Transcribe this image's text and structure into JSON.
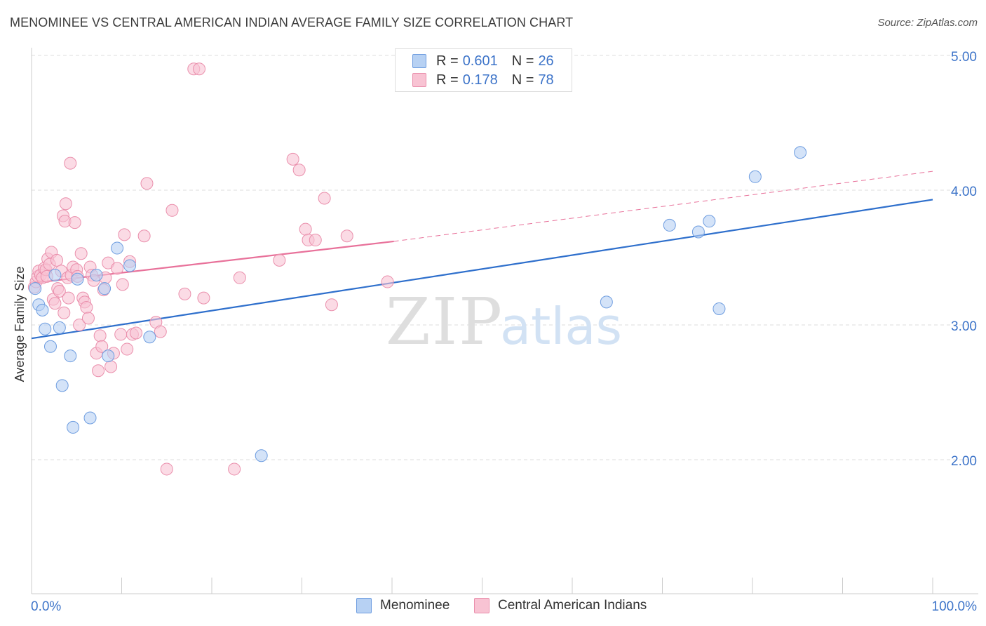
{
  "title": "MENOMINEE VS CENTRAL AMERICAN INDIAN AVERAGE FAMILY SIZE CORRELATION CHART",
  "source": "Source: ZipAtlas.com",
  "watermark": {
    "zip": "ZIP",
    "atlas": "atlas"
  },
  "legend": {
    "series": [
      {
        "r_label": "R =",
        "r_value": "0.601",
        "n_label": "N =",
        "n_value": "26"
      },
      {
        "r_label": "R =",
        "r_value": "0.178",
        "n_label": "N =",
        "n_value": "78"
      }
    ]
  },
  "bottom_legend": [
    "Menominee",
    "Central American Indians"
  ],
  "colors": {
    "blue_fill": "#b7d1f3",
    "blue_stroke": "#6e9de0",
    "blue_line": "#2e6fcc",
    "pink_fill": "#f8c3d3",
    "pink_stroke": "#ea8fac",
    "pink_line": "#e8719a",
    "axis_label": "#3d74c9"
  },
  "chart_data": {
    "type": "scatter",
    "title": "MENOMINEE VS CENTRAL AMERICAN INDIAN AVERAGE FAMILY SIZE CORRELATION CHART",
    "xlabel": "",
    "ylabel": "Average Family Size",
    "xlim": [
      0,
      100
    ],
    "ylim": [
      1.2,
      5.1
    ],
    "x_tick_labels": [
      "0.0%",
      "100.0%"
    ],
    "y_ticks": [
      2.0,
      3.0,
      4.0,
      5.0
    ],
    "y_tick_labels": [
      "2.00",
      "3.00",
      "4.00",
      "5.00"
    ],
    "grid": true,
    "series": [
      {
        "name": "Menominee",
        "r": 0.601,
        "n": 26,
        "trendline": {
          "x": [
            0,
            100
          ],
          "y": [
            2.9,
            3.93
          ]
        },
        "points": [
          {
            "x": 0.4,
            "y": 3.27
          },
          {
            "x": 0.8,
            "y": 3.15
          },
          {
            "x": 1.2,
            "y": 3.11
          },
          {
            "x": 1.5,
            "y": 2.97
          },
          {
            "x": 2.1,
            "y": 2.84
          },
          {
            "x": 2.6,
            "y": 3.37
          },
          {
            "x": 3.1,
            "y": 2.98
          },
          {
            "x": 3.4,
            "y": 2.55
          },
          {
            "x": 4.3,
            "y": 2.77
          },
          {
            "x": 4.6,
            "y": 2.24
          },
          {
            "x": 5.1,
            "y": 3.34
          },
          {
            "x": 6.5,
            "y": 2.31
          },
          {
            "x": 7.2,
            "y": 3.37
          },
          {
            "x": 8.1,
            "y": 3.27
          },
          {
            "x": 8.5,
            "y": 2.77
          },
          {
            "x": 9.5,
            "y": 3.57
          },
          {
            "x": 10.9,
            "y": 3.44
          },
          {
            "x": 13.1,
            "y": 2.91
          },
          {
            "x": 25.5,
            "y": 2.03
          },
          {
            "x": 63.8,
            "y": 3.17
          },
          {
            "x": 70.8,
            "y": 3.74
          },
          {
            "x": 74.0,
            "y": 3.69
          },
          {
            "x": 75.2,
            "y": 3.77
          },
          {
            "x": 76.3,
            "y": 3.12
          },
          {
            "x": 80.3,
            "y": 4.1
          },
          {
            "x": 85.3,
            "y": 4.28
          }
        ]
      },
      {
        "name": "Central American Indians",
        "r": 0.178,
        "n": 78,
        "trendline": {
          "x": [
            0,
            40.2
          ],
          "y": [
            3.31,
            3.62
          ]
        },
        "trendline_dashed": {
          "x": [
            40.2,
            100
          ],
          "y": [
            3.62,
            4.14
          ]
        },
        "points": [
          {
            "x": 0.3,
            "y": 3.28
          },
          {
            "x": 0.5,
            "y": 3.32
          },
          {
            "x": 0.7,
            "y": 3.36
          },
          {
            "x": 0.8,
            "y": 3.4
          },
          {
            "x": 1.0,
            "y": 3.37
          },
          {
            "x": 1.2,
            "y": 3.35
          },
          {
            "x": 1.4,
            "y": 3.42
          },
          {
            "x": 1.6,
            "y": 3.41
          },
          {
            "x": 1.7,
            "y": 3.36
          },
          {
            "x": 1.8,
            "y": 3.49
          },
          {
            "x": 2.0,
            "y": 3.45
          },
          {
            "x": 2.2,
            "y": 3.54
          },
          {
            "x": 2.4,
            "y": 3.19
          },
          {
            "x": 2.6,
            "y": 3.16
          },
          {
            "x": 2.8,
            "y": 3.48
          },
          {
            "x": 2.9,
            "y": 3.27
          },
          {
            "x": 3.1,
            "y": 3.25
          },
          {
            "x": 3.3,
            "y": 3.4
          },
          {
            "x": 3.5,
            "y": 3.81
          },
          {
            "x": 3.6,
            "y": 3.09
          },
          {
            "x": 3.7,
            "y": 3.77
          },
          {
            "x": 3.8,
            "y": 3.9
          },
          {
            "x": 4.0,
            "y": 3.35
          },
          {
            "x": 4.1,
            "y": 3.2
          },
          {
            "x": 4.3,
            "y": 4.2
          },
          {
            "x": 4.4,
            "y": 3.37
          },
          {
            "x": 4.6,
            "y": 3.43
          },
          {
            "x": 4.8,
            "y": 3.76
          },
          {
            "x": 5.0,
            "y": 3.41
          },
          {
            "x": 5.1,
            "y": 3.36
          },
          {
            "x": 5.3,
            "y": 3.0
          },
          {
            "x": 5.5,
            "y": 3.53
          },
          {
            "x": 5.7,
            "y": 3.2
          },
          {
            "x": 5.9,
            "y": 3.17
          },
          {
            "x": 6.1,
            "y": 3.13
          },
          {
            "x": 6.3,
            "y": 3.05
          },
          {
            "x": 6.5,
            "y": 3.43
          },
          {
            "x": 6.7,
            "y": 3.37
          },
          {
            "x": 6.9,
            "y": 3.33
          },
          {
            "x": 7.2,
            "y": 2.79
          },
          {
            "x": 7.4,
            "y": 2.66
          },
          {
            "x": 7.6,
            "y": 2.92
          },
          {
            "x": 7.8,
            "y": 2.84
          },
          {
            "x": 8.0,
            "y": 3.26
          },
          {
            "x": 8.2,
            "y": 3.35
          },
          {
            "x": 8.5,
            "y": 3.46
          },
          {
            "x": 8.8,
            "y": 2.69
          },
          {
            "x": 9.1,
            "y": 2.79
          },
          {
            "x": 9.5,
            "y": 3.42
          },
          {
            "x": 9.9,
            "y": 2.93
          },
          {
            "x": 10.1,
            "y": 3.3
          },
          {
            "x": 10.3,
            "y": 3.67
          },
          {
            "x": 10.6,
            "y": 2.82
          },
          {
            "x": 10.9,
            "y": 3.47
          },
          {
            "x": 11.2,
            "y": 2.93
          },
          {
            "x": 11.6,
            "y": 2.94
          },
          {
            "x": 12.5,
            "y": 3.66
          },
          {
            "x": 12.8,
            "y": 4.05
          },
          {
            "x": 13.8,
            "y": 3.02
          },
          {
            "x": 14.3,
            "y": 2.95
          },
          {
            "x": 15.0,
            "y": 1.93
          },
          {
            "x": 15.6,
            "y": 3.85
          },
          {
            "x": 17.0,
            "y": 3.23
          },
          {
            "x": 18.0,
            "y": 4.9
          },
          {
            "x": 18.6,
            "y": 4.9
          },
          {
            "x": 19.1,
            "y": 3.2
          },
          {
            "x": 22.5,
            "y": 1.93
          },
          {
            "x": 23.1,
            "y": 3.35
          },
          {
            "x": 27.5,
            "y": 3.48
          },
          {
            "x": 29.0,
            "y": 4.23
          },
          {
            "x": 29.7,
            "y": 4.15
          },
          {
            "x": 30.4,
            "y": 3.71
          },
          {
            "x": 30.7,
            "y": 3.63
          },
          {
            "x": 31.5,
            "y": 3.63
          },
          {
            "x": 32.5,
            "y": 3.94
          },
          {
            "x": 33.3,
            "y": 3.15
          },
          {
            "x": 35.0,
            "y": 3.66
          },
          {
            "x": 39.5,
            "y": 3.32
          }
        ]
      }
    ]
  }
}
